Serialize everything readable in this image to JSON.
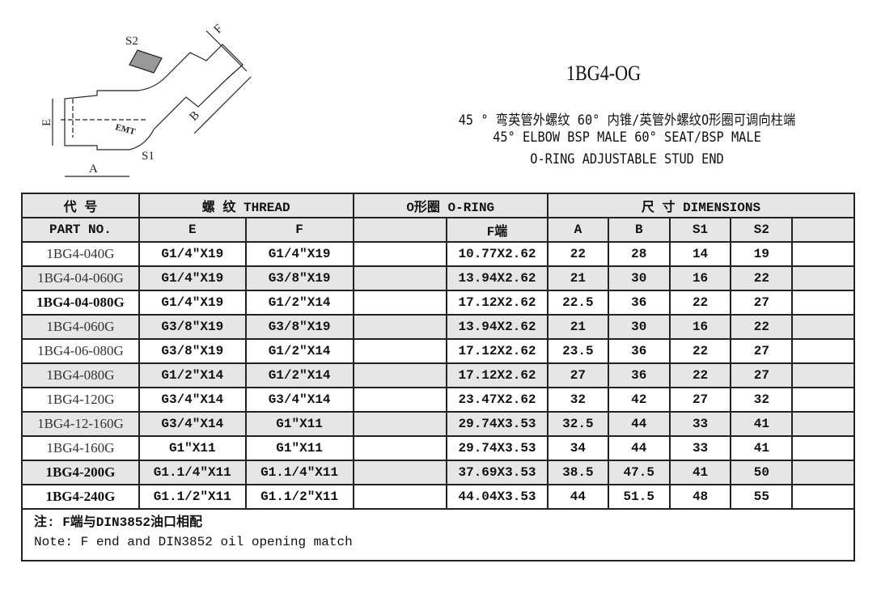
{
  "drawing": {
    "labels": {
      "s2": "S2",
      "f": "F",
      "e": "E",
      "b": "B",
      "s1": "S1",
      "a": "A",
      "logo": "EMT"
    }
  },
  "title": "1BG4-OG",
  "subtitle_cn": "45 ° 弯英管外螺纹 60° 内锥/英管外螺纹O形圈可调向柱端",
  "subtitle_en1": "45°  ELBOW BSP MALE 60°  SEAT/BSP MALE",
  "subtitle_en2": "O-RING ADJUSTABLE STUD END",
  "table": {
    "h1": {
      "code": "代  号",
      "thread": "螺  纹    THREAD",
      "oring": "O形圈 O-RING",
      "dims": "尺  寸     DIMENSIONS"
    },
    "h2": {
      "part": "PART   NO.",
      "e": "E",
      "f": "F",
      "blank": "",
      "fend": "F端",
      "a": "A",
      "b": "B",
      "s1": "S1",
      "s2": "S2",
      "extra": ""
    },
    "rows": [
      {
        "part": "1BG4-040G",
        "e": "G1/4″X19",
        "f": "G1/4″X19",
        "fend": "10.77X2.62",
        "a": "22",
        "b": "28",
        "s1": "14",
        "s2": "19"
      },
      {
        "part": "1BG4-04-060G",
        "e": "G1/4″X19",
        "f": "G3/8″X19",
        "fend": "13.94X2.62",
        "a": "21",
        "b": "30",
        "s1": "16",
        "s2": "22"
      },
      {
        "part": "1BG4-04-080G",
        "e": "G1/4″X19",
        "f": "G1/2″X14",
        "fend": "17.12X2.62",
        "a": "22.5",
        "b": "36",
        "s1": "22",
        "s2": "27"
      },
      {
        "part": "1BG4-060G",
        "e": "G3/8″X19",
        "f": "G3/8″X19",
        "fend": "13.94X2.62",
        "a": "21",
        "b": "30",
        "s1": "16",
        "s2": "22"
      },
      {
        "part": "1BG4-06-080G",
        "e": "G3/8″X19",
        "f": "G1/2″X14",
        "fend": "17.12X2.62",
        "a": "23.5",
        "b": "36",
        "s1": "22",
        "s2": "27"
      },
      {
        "part": "1BG4-080G",
        "e": "G1/2″X14",
        "f": "G1/2″X14",
        "fend": "17.12X2.62",
        "a": "27",
        "b": "36",
        "s1": "22",
        "s2": "27"
      },
      {
        "part": "1BG4-120G",
        "e": "G3/4″X14",
        "f": "G3/4″X14",
        "fend": "23.47X2.62",
        "a": "32",
        "b": "42",
        "s1": "27",
        "s2": "32"
      },
      {
        "part": "1BG4-12-160G",
        "e": "G3/4″X14",
        "f": "G1″X11",
        "fend": "29.74X3.53",
        "a": "32.5",
        "b": "44",
        "s1": "33",
        "s2": "41"
      },
      {
        "part": "1BG4-160G",
        "e": "G1″X11",
        "f": "G1″X11",
        "fend": "29.74X3.53",
        "a": "34",
        "b": "44",
        "s1": "33",
        "s2": "41"
      },
      {
        "part": "1BG4-200G",
        "e": "G1.1/4″X11",
        "f": "G1.1/4″X11",
        "fend": "37.69X3.53",
        "a": "38.5",
        "b": "47.5",
        "s1": "41",
        "s2": "50"
      },
      {
        "part": "1BG4-240G",
        "e": "G1.1/2″X11",
        "f": "G1.1/2″X11",
        "fend": "44.04X3.53",
        "a": "44",
        "b": "51.5",
        "s1": "48",
        "s2": "55"
      }
    ],
    "note_cn": "注: F端与DIN3852油口相配",
    "note_en": "Note: F end and DIN3852 oil opening match"
  }
}
